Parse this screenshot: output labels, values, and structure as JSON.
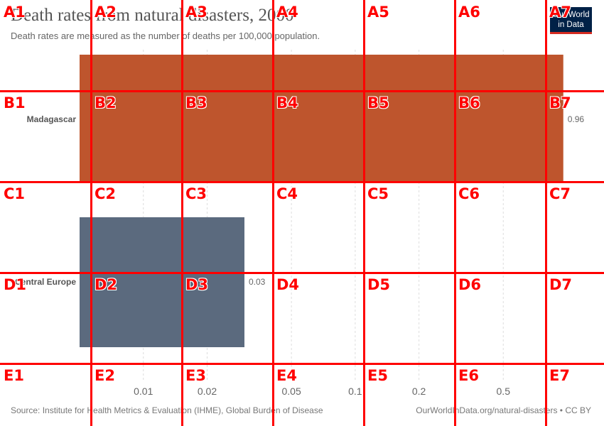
{
  "header": {
    "title": "Death rates from natural disasters, 2000",
    "subtitle": "Death rates are measured as the number of deaths per 100,000 population.",
    "logo_line1": "Our World",
    "logo_line2": "in Data"
  },
  "footer": {
    "source": "Source: Institute for Health Metrics & Evaluation (IHME), Global Burden of Disease",
    "link": "OurWorldInData.org/natural-disasters • CC BY"
  },
  "chart_data": {
    "type": "bar",
    "orientation": "horizontal",
    "title": "Death rates from natural disasters, 2000",
    "subtitle": "Death rates are measured as the number of deaths per 100,000 population.",
    "x_scale": "log",
    "xlim": [
      0.005,
      1.0
    ],
    "x_ticks": [
      0.01,
      0.02,
      0.05,
      0.1,
      0.2,
      0.5
    ],
    "x_tick_labels": [
      "0.01",
      "0.02",
      "0.05",
      "0.1",
      "0.2",
      "0.5"
    ],
    "categories": [
      "Madagascar",
      "Central Europe"
    ],
    "values": [
      0.96,
      0.03
    ],
    "value_labels": [
      "0.96",
      "0.03"
    ],
    "colors": [
      "#be552d",
      "#5b6a7e"
    ],
    "grid": true,
    "grid_style": "dashed vertical"
  },
  "overlay": {
    "color": "#ff0000",
    "rows": [
      "A",
      "B",
      "C",
      "D",
      "E"
    ],
    "cols": [
      "1",
      "2",
      "3",
      "4",
      "5",
      "6",
      "7"
    ]
  }
}
